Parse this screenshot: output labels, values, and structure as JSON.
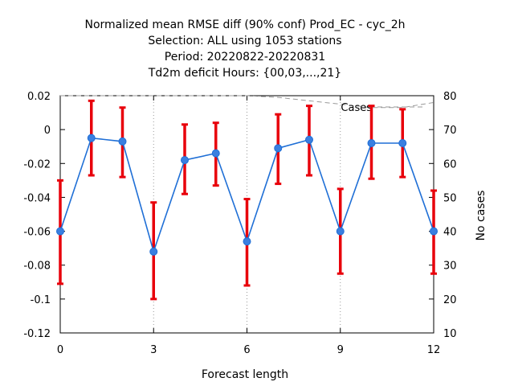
{
  "chart_data": {
    "type": "line",
    "title_lines": [
      "Normalized mean RMSE diff (90% conf) Prod_EC - cyc_2h",
      "Selection: ALL using  1053 stations",
      "Period: 20220822-20220831",
      "Td2m deficit   Hours: {00,03,...,21}"
    ],
    "xlabel": "Forecast length",
    "ylabel": "",
    "y2label": "No cases",
    "xlim": [
      0,
      12
    ],
    "ylim": [
      -0.12,
      0.02
    ],
    "y2lim": [
      10,
      80
    ],
    "xticks": [
      0,
      3,
      6,
      9,
      12
    ],
    "xtick_labels": [
      "0",
      "3",
      "6",
      "9",
      "12"
    ],
    "yticks": [
      -0.12,
      -0.1,
      -0.08,
      -0.06,
      -0.04,
      -0.02,
      0,
      0.02
    ],
    "ytick_labels": [
      "-0.12",
      "-0.1",
      "-0.08",
      "-0.06",
      "-0.04",
      "-0.02",
      "0",
      "0.02"
    ],
    "y2ticks": [
      10,
      20,
      30,
      40,
      50,
      60,
      70,
      80
    ],
    "y2tick_labels": [
      "10",
      "20",
      "30",
      "40",
      "50",
      "60",
      "70",
      "80"
    ],
    "grid": {
      "vertical_dotted_at": [
        3,
        6,
        9
      ],
      "horizontal": false
    },
    "series": [
      {
        "kind": "mean_with_errorbars",
        "color": "#1f6fd6",
        "marker_color": "#3a7fe0",
        "errorbar_color": "#e8000b",
        "x": [
          0,
          1,
          2,
          3,
          4,
          5,
          6,
          7,
          8,
          9,
          10,
          11,
          12
        ],
        "y": [
          -0.06,
          -0.005,
          -0.007,
          -0.072,
          -0.018,
          -0.014,
          -0.066,
          -0.011,
          -0.006,
          -0.06,
          -0.008,
          -0.008,
          -0.06
        ],
        "y_low": [
          -0.091,
          -0.027,
          -0.028,
          -0.1,
          -0.038,
          -0.033,
          -0.092,
          -0.032,
          -0.027,
          -0.085,
          -0.029,
          -0.028,
          -0.085
        ],
        "y_high": [
          -0.03,
          0.017,
          0.013,
          -0.043,
          0.003,
          0.004,
          -0.041,
          0.009,
          0.014,
          -0.035,
          0.014,
          0.012,
          -0.036
        ]
      },
      {
        "name": "Cases",
        "kind": "cases_line",
        "axis": "y2",
        "color": "#999999",
        "dash": "6,4",
        "x": [
          0,
          1,
          2,
          3,
          4,
          5,
          6,
          7,
          8,
          9,
          10,
          11,
          12
        ],
        "y": [
          80,
          80,
          80,
          80,
          80,
          80,
          80,
          79.5,
          78.5,
          77.5,
          76.5,
          76.5,
          78
        ]
      }
    ],
    "legend": {
      "entries": [
        "Cases"
      ],
      "placement": "top-right"
    }
  }
}
